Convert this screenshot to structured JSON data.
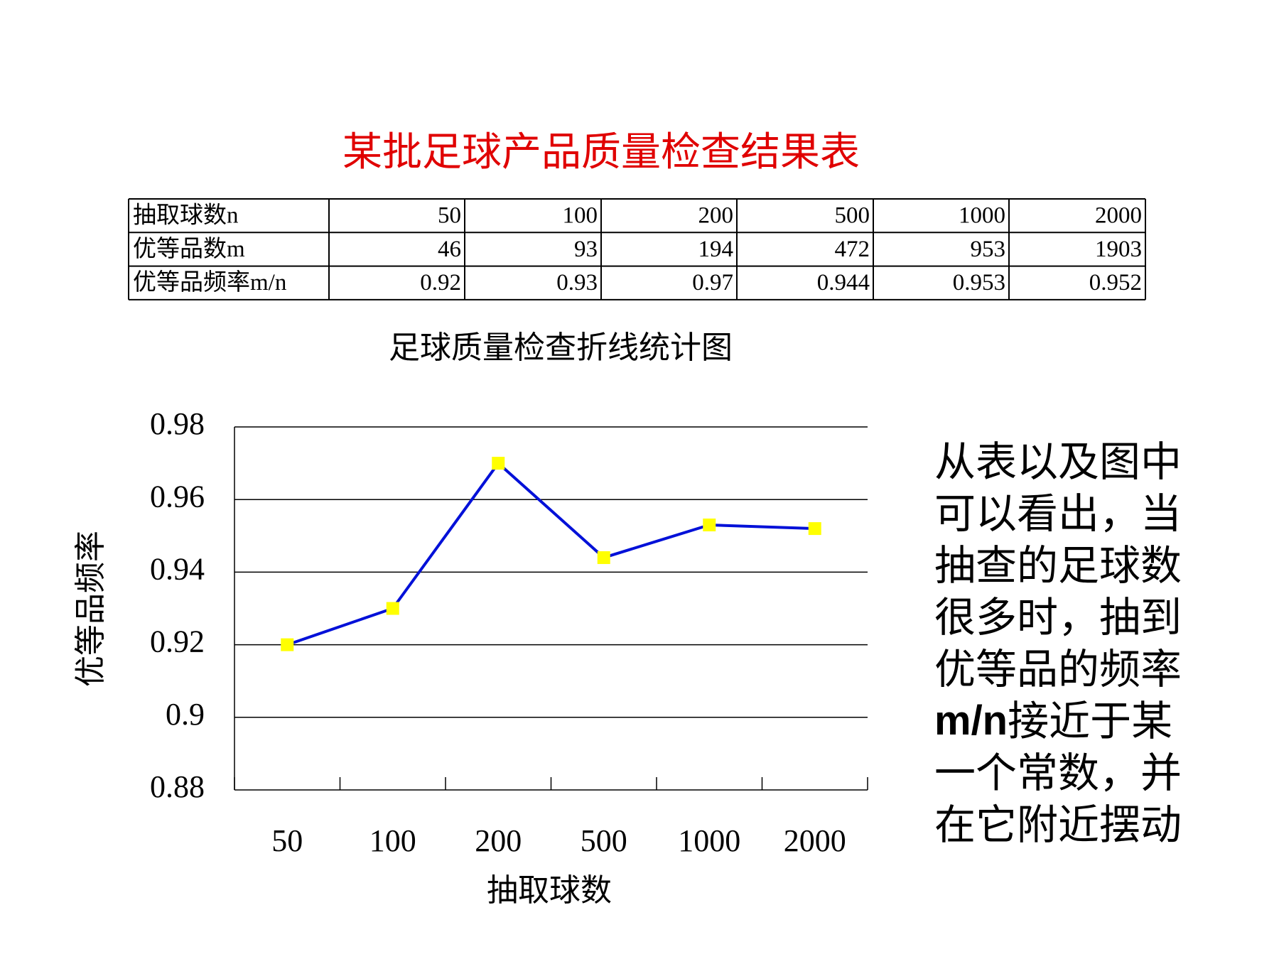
{
  "title": "某批足球产品质量检查结果表",
  "table": {
    "rows": [
      [
        "抽取球数n",
        "50",
        "100",
        "200",
        "500",
        "1000",
        "2000"
      ],
      [
        "优等品数m",
        "46",
        "93",
        "194",
        "472",
        "953",
        "1903"
      ],
      [
        "优等品频率m/n",
        "0.92",
        "0.93",
        "0.97",
        "0.944",
        "0.953",
        "0.952"
      ]
    ]
  },
  "chart_data": {
    "type": "line",
    "title": "足球质量检查折线统计图",
    "x_label": "抽取球数",
    "y_label": "优等品频率",
    "categories": [
      "50",
      "100",
      "200",
      "500",
      "1000",
      "2000"
    ],
    "values": [
      0.92,
      0.93,
      0.97,
      0.944,
      0.953,
      0.952
    ],
    "color": "#0010d8",
    "marker_color": "#ffff00",
    "ylim": [
      0.88,
      0.98
    ],
    "yticks": [
      0.88,
      0.9,
      0.92,
      0.94,
      0.96,
      0.98
    ],
    "grid": true
  },
  "note": {
    "lines": [
      [
        "从表以及图中"
      ],
      [
        "可以看出，当"
      ],
      [
        "抽查的足球数"
      ],
      [
        "很多时，抽到"
      ],
      [
        "优等品的频率"
      ],
      [
        "m/n",
        "接近于某"
      ],
      [
        "一个常数，并"
      ],
      [
        "在它附近摆动"
      ]
    ]
  }
}
